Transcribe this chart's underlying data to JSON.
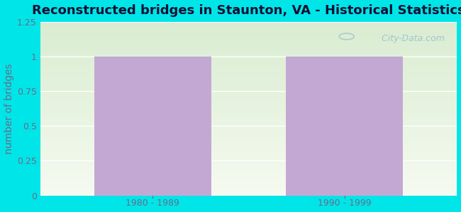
{
  "title": "Reconstructed bridges in Staunton, VA - Historical Statistics",
  "categories": [
    "1980 - 1989",
    "1990 - 1999"
  ],
  "values": [
    1,
    1
  ],
  "bar_color": "#c4a8d4",
  "ylabel": "number of bridges",
  "ylim": [
    0,
    1.25
  ],
  "yticks": [
    0,
    0.25,
    0.5,
    0.75,
    1,
    1.25
  ],
  "ytick_labels": [
    "0",
    "0.25",
    "0.5",
    "0.75",
    "1",
    "1.25"
  ],
  "title_fontsize": 13,
  "ylabel_fontsize": 10,
  "tick_fontsize": 9,
  "tick_color": "#6a6a8a",
  "background_outer": "#00e5e8",
  "watermark_text": " City-Data.com",
  "bar_width": 0.28,
  "x_positions": [
    0.27,
    0.73
  ]
}
